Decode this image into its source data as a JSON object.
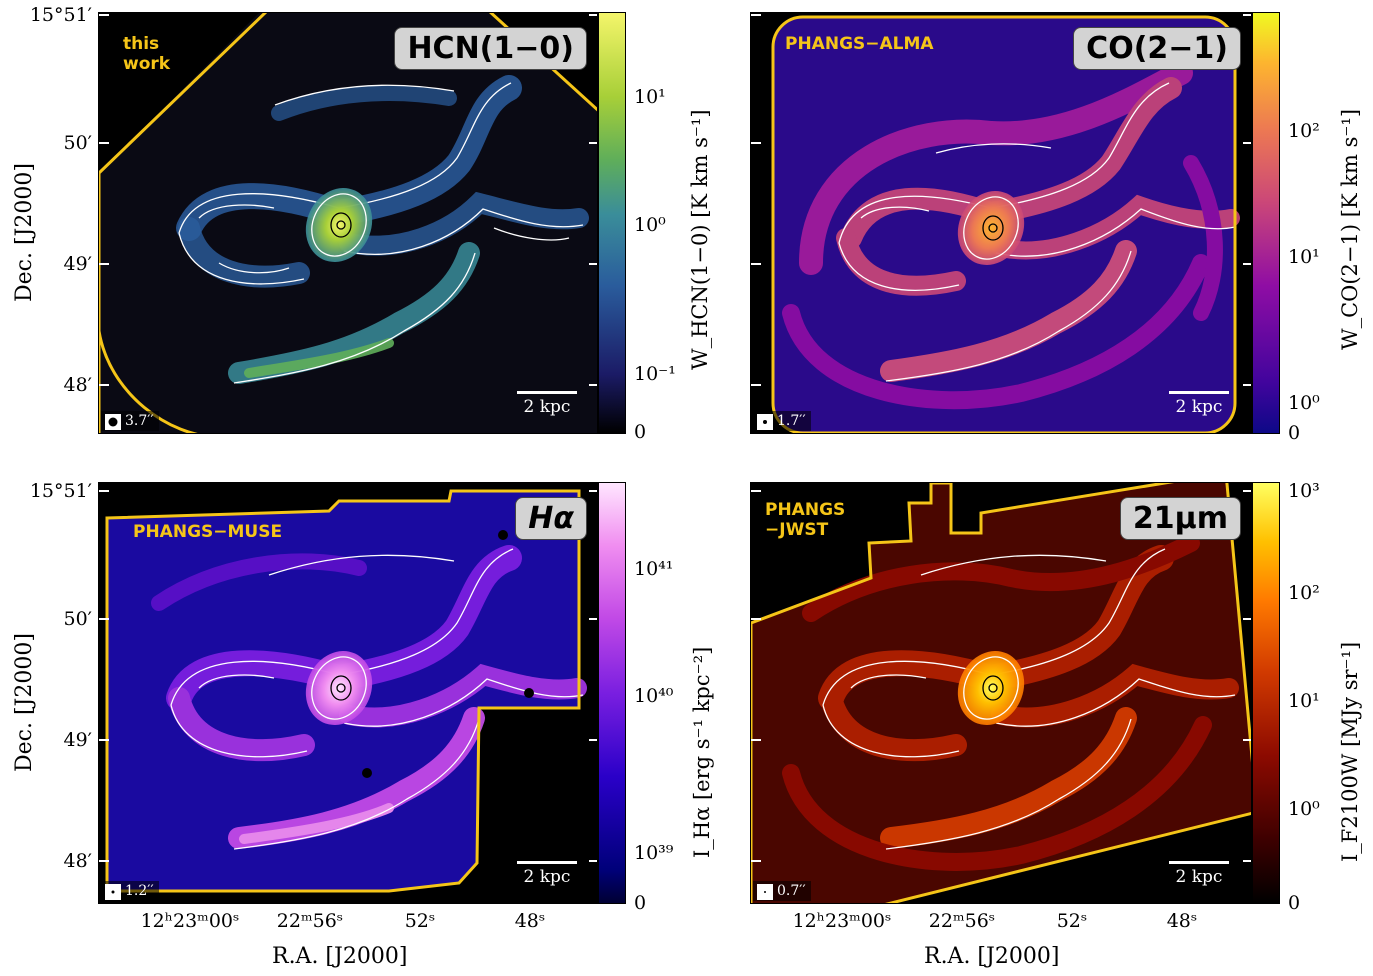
{
  "panels": [
    {
      "name": "hcn",
      "label": "HCN(1−0)",
      "survey": "this\nwork",
      "beam": "3.7′′",
      "scalebar": "2 kpc",
      "colorbar_label": "W_HCN(1−0) [K km s⁻¹]",
      "colorbar_ticks": [
        "10¹",
        "10⁰",
        "10⁻¹",
        "0"
      ],
      "colormap": [
        "#000000",
        "#1b1b66",
        "#2a5c9c",
        "#3a8d9a",
        "#5fae5a",
        "#a7cf38",
        "#f4f56a"
      ],
      "footprint_color": "#f5c518"
    },
    {
      "name": "co",
      "label": "CO(2−1)",
      "survey": "PHANGS−ALMA",
      "beam": "1.7′′",
      "scalebar": "2 kpc",
      "colorbar_label": "W_CO(2−1) [K km s⁻¹]",
      "colorbar_ticks": [
        "10²",
        "10¹",
        "10⁰",
        "0"
      ],
      "colormap": [
        "#0d0887",
        "#41049d",
        "#8f0da4",
        "#cb4778",
        "#ec7853",
        "#fdb42f",
        "#f0f921"
      ],
      "footprint_color": "#f5c518"
    },
    {
      "name": "halpha",
      "label": "Hα",
      "survey": "PHANGS−MUSE",
      "beam": "1.2′′",
      "scalebar": "2 kpc",
      "colorbar_label": "I_Hα [erg s⁻¹ kpc⁻²]",
      "colorbar_ticks": [
        "10⁴¹",
        "10⁴⁰",
        "10³⁹",
        "0"
      ],
      "colormap": [
        "#000033",
        "#00007a",
        "#2a00c8",
        "#7a1fe0",
        "#c24ae6",
        "#f08df0",
        "#ffe6ff"
      ],
      "footprint_color": "#f5c518"
    },
    {
      "name": "f2100w",
      "label": "21μm",
      "survey": "PHANGS\n−JWST",
      "beam": "0.7′′",
      "scalebar": "2 kpc",
      "colorbar_label": "I_F2100W [MJy sr⁻¹]",
      "colorbar_ticks": [
        "10³",
        "10²",
        "10¹",
        "10⁰",
        "0"
      ],
      "colormap": [
        "#000000",
        "#3d0000",
        "#8c0a00",
        "#d13a00",
        "#ff7a00",
        "#ffc000",
        "#ffff60"
      ],
      "footprint_color": "#f5c518"
    }
  ],
  "axes": {
    "ylabel": "Dec. [J2000]",
    "xlabel": "R.A. [J2000]",
    "yticks": [
      "15°51′",
      "50′",
      "49′",
      "48′"
    ],
    "xticks": [
      "12ʰ23ᵐ00ˢ",
      "22ᵐ56ˢ",
      "52ˢ",
      "48ˢ"
    ]
  }
}
